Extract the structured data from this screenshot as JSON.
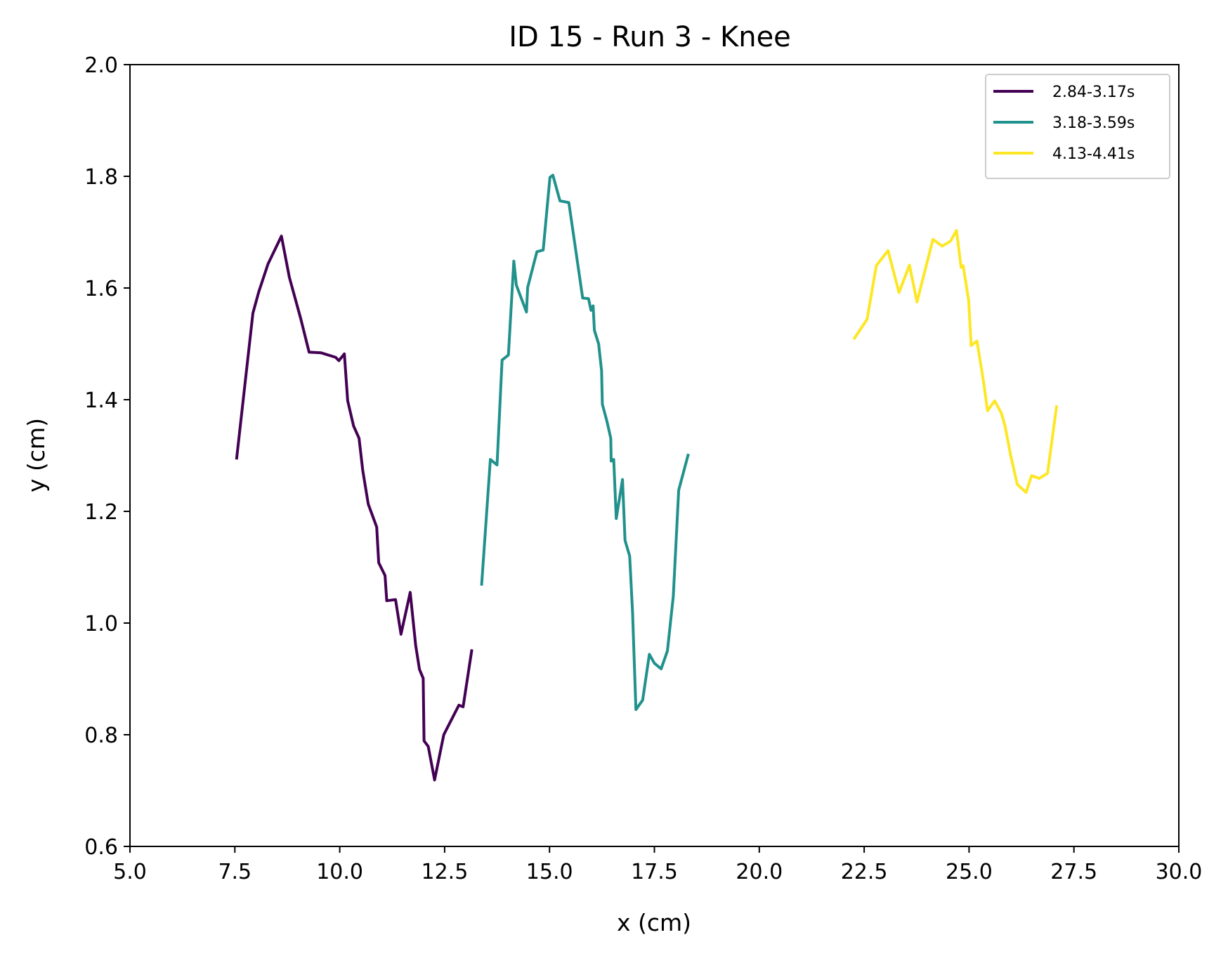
{
  "chart_data": {
    "type": "line",
    "title": "ID 15 - Run 3 - Knee",
    "xlabel": "x (cm)",
    "ylabel": "y (cm)",
    "xlim": [
      5.0,
      30.0
    ],
    "ylim": [
      0.6,
      2.0
    ],
    "xticks": [
      "5.0",
      "7.5",
      "10.0",
      "12.5",
      "15.0",
      "17.5",
      "20.0",
      "22.5",
      "25.0",
      "27.5",
      "30.0"
    ],
    "yticks": [
      "0.6",
      "0.8",
      "1.0",
      "1.2",
      "1.4",
      "1.6",
      "1.8",
      "2.0"
    ],
    "grid": false,
    "legend_position": "top-right",
    "series": [
      {
        "name": "2.84-3.17s",
        "color": "#440154",
        "points": [
          [
            7.54,
            1.293
          ],
          [
            7.93,
            1.555
          ],
          [
            8.07,
            1.593
          ],
          [
            8.29,
            1.643
          ],
          [
            8.61,
            1.693
          ],
          [
            8.8,
            1.619
          ],
          [
            9.07,
            1.545
          ],
          [
            9.27,
            1.485
          ],
          [
            9.55,
            1.484
          ],
          [
            9.9,
            1.476
          ],
          [
            9.98,
            1.47
          ],
          [
            10.11,
            1.482
          ],
          [
            10.19,
            1.398
          ],
          [
            10.33,
            1.353
          ],
          [
            10.46,
            1.331
          ],
          [
            10.55,
            1.273
          ],
          [
            10.68,
            1.213
          ],
          [
            10.88,
            1.172
          ],
          [
            10.93,
            1.108
          ],
          [
            11.08,
            1.085
          ],
          [
            11.12,
            1.04
          ],
          [
            11.33,
            1.042
          ],
          [
            11.46,
            0.98
          ],
          [
            11.68,
            1.055
          ],
          [
            11.81,
            0.96
          ],
          [
            11.9,
            0.917
          ],
          [
            11.99,
            0.901
          ],
          [
            12.01,
            0.789
          ],
          [
            12.11,
            0.779
          ],
          [
            12.26,
            0.719
          ],
          [
            12.48,
            0.8
          ],
          [
            12.84,
            0.853
          ],
          [
            12.94,
            0.85
          ],
          [
            13.15,
            0.953
          ]
        ]
      },
      {
        "name": "3.18-3.59s",
        "color": "#21918c",
        "points": [
          [
            13.38,
            1.067
          ],
          [
            13.59,
            1.293
          ],
          [
            13.75,
            1.283
          ],
          [
            13.87,
            1.471
          ],
          [
            14.02,
            1.48
          ],
          [
            14.15,
            1.648
          ],
          [
            14.21,
            1.605
          ],
          [
            14.45,
            1.557
          ],
          [
            14.48,
            1.601
          ],
          [
            14.7,
            1.665
          ],
          [
            14.85,
            1.668
          ],
          [
            15.01,
            1.798
          ],
          [
            15.08,
            1.802
          ],
          [
            15.25,
            1.756
          ],
          [
            15.46,
            1.753
          ],
          [
            15.79,
            1.582
          ],
          [
            15.93,
            1.581
          ],
          [
            15.99,
            1.56
          ],
          [
            16.04,
            1.568
          ],
          [
            16.07,
            1.524
          ],
          [
            16.17,
            1.5
          ],
          [
            16.24,
            1.452
          ],
          [
            16.26,
            1.392
          ],
          [
            16.37,
            1.361
          ],
          [
            16.46,
            1.331
          ],
          [
            16.47,
            1.29
          ],
          [
            16.53,
            1.293
          ],
          [
            16.59,
            1.187
          ],
          [
            16.74,
            1.257
          ],
          [
            16.8,
            1.148
          ],
          [
            16.91,
            1.12
          ],
          [
            16.98,
            1.02
          ],
          [
            17.06,
            0.845
          ],
          [
            17.22,
            0.862
          ],
          [
            17.38,
            0.944
          ],
          [
            17.5,
            0.928
          ],
          [
            17.66,
            0.918
          ],
          [
            17.81,
            0.95
          ],
          [
            17.95,
            1.048
          ],
          [
            18.08,
            1.238
          ],
          [
            18.31,
            1.303
          ]
        ]
      },
      {
        "name": "4.13-4.41s",
        "color": "#fde725",
        "points": [
          [
            22.25,
            1.508
          ],
          [
            22.57,
            1.544
          ],
          [
            22.79,
            1.64
          ],
          [
            23.07,
            1.667
          ],
          [
            23.33,
            1.592
          ],
          [
            23.58,
            1.641
          ],
          [
            23.76,
            1.575
          ],
          [
            24.14,
            1.687
          ],
          [
            24.36,
            1.675
          ],
          [
            24.56,
            1.684
          ],
          [
            24.7,
            1.703
          ],
          [
            24.81,
            1.637
          ],
          [
            24.86,
            1.64
          ],
          [
            24.99,
            1.578
          ],
          [
            25.05,
            1.497
          ],
          [
            25.19,
            1.505
          ],
          [
            25.34,
            1.435
          ],
          [
            25.44,
            1.38
          ],
          [
            25.61,
            1.398
          ],
          [
            25.77,
            1.376
          ],
          [
            25.86,
            1.352
          ],
          [
            25.99,
            1.301
          ],
          [
            26.15,
            1.248
          ],
          [
            26.36,
            1.234
          ],
          [
            26.49,
            1.264
          ],
          [
            26.67,
            1.259
          ],
          [
            26.87,
            1.268
          ],
          [
            27.09,
            1.39
          ]
        ]
      }
    ]
  }
}
